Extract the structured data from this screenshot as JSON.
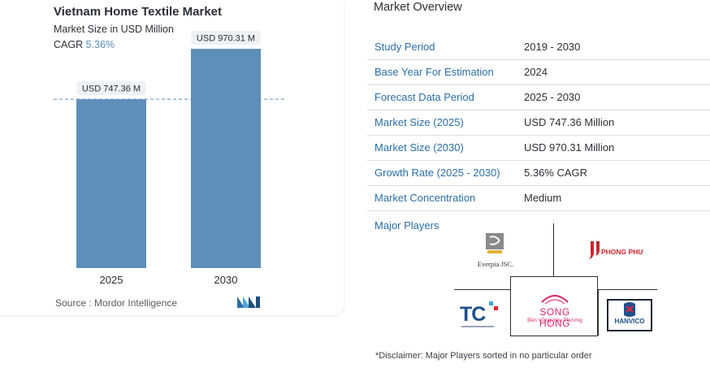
{
  "chart_data": {
    "type": "bar",
    "title": "Vietnam Home Textile Market",
    "subtitle": "Market Size in USD Million",
    "cagr_label": "CAGR",
    "cagr_value": "5.36%",
    "categories": [
      "2025",
      "2030"
    ],
    "values": [
      747.36,
      970.31
    ],
    "data_labels": [
      "USD 747.36 M",
      "USD 970.31 M"
    ],
    "ylim": [
      0,
      1100
    ],
    "bar_color": "#5e8fb9",
    "reference_line": "dashed line at first bar value",
    "source": "Source :  Mordor Intelligence"
  },
  "overview": {
    "title": "Market Overview",
    "rows": [
      {
        "key": "Study Period",
        "value": "2019 - 2030"
      },
      {
        "key": "Base Year For Estimation",
        "value": "2024"
      },
      {
        "key": "Forecast Data Period",
        "value": "2025 - 2030"
      },
      {
        "key": "Market Size (2025)",
        "value": "USD 747.36 Million"
      },
      {
        "key": "Market Size (2030)",
        "value": "USD 970.31 Million"
      },
      {
        "key": "Growth Rate (2025 - 2030)",
        "value": "5.36% CAGR"
      },
      {
        "key": "Market Concentration",
        "value": "Medium"
      }
    ]
  },
  "major_players": {
    "title": "Major Players",
    "players": [
      "Everpia JSC.",
      "PHONG PHU",
      "TC",
      "SONG HONG",
      "HANVICO"
    ],
    "songhong_tagline": "Bền Vững Yêu Thương",
    "disclaimer": "*Disclaimer: Major Players sorted in no particular order"
  },
  "colors": {
    "accent": "#2b6ea5",
    "bar": "#5e8fb9",
    "text": "#2b2f36"
  }
}
